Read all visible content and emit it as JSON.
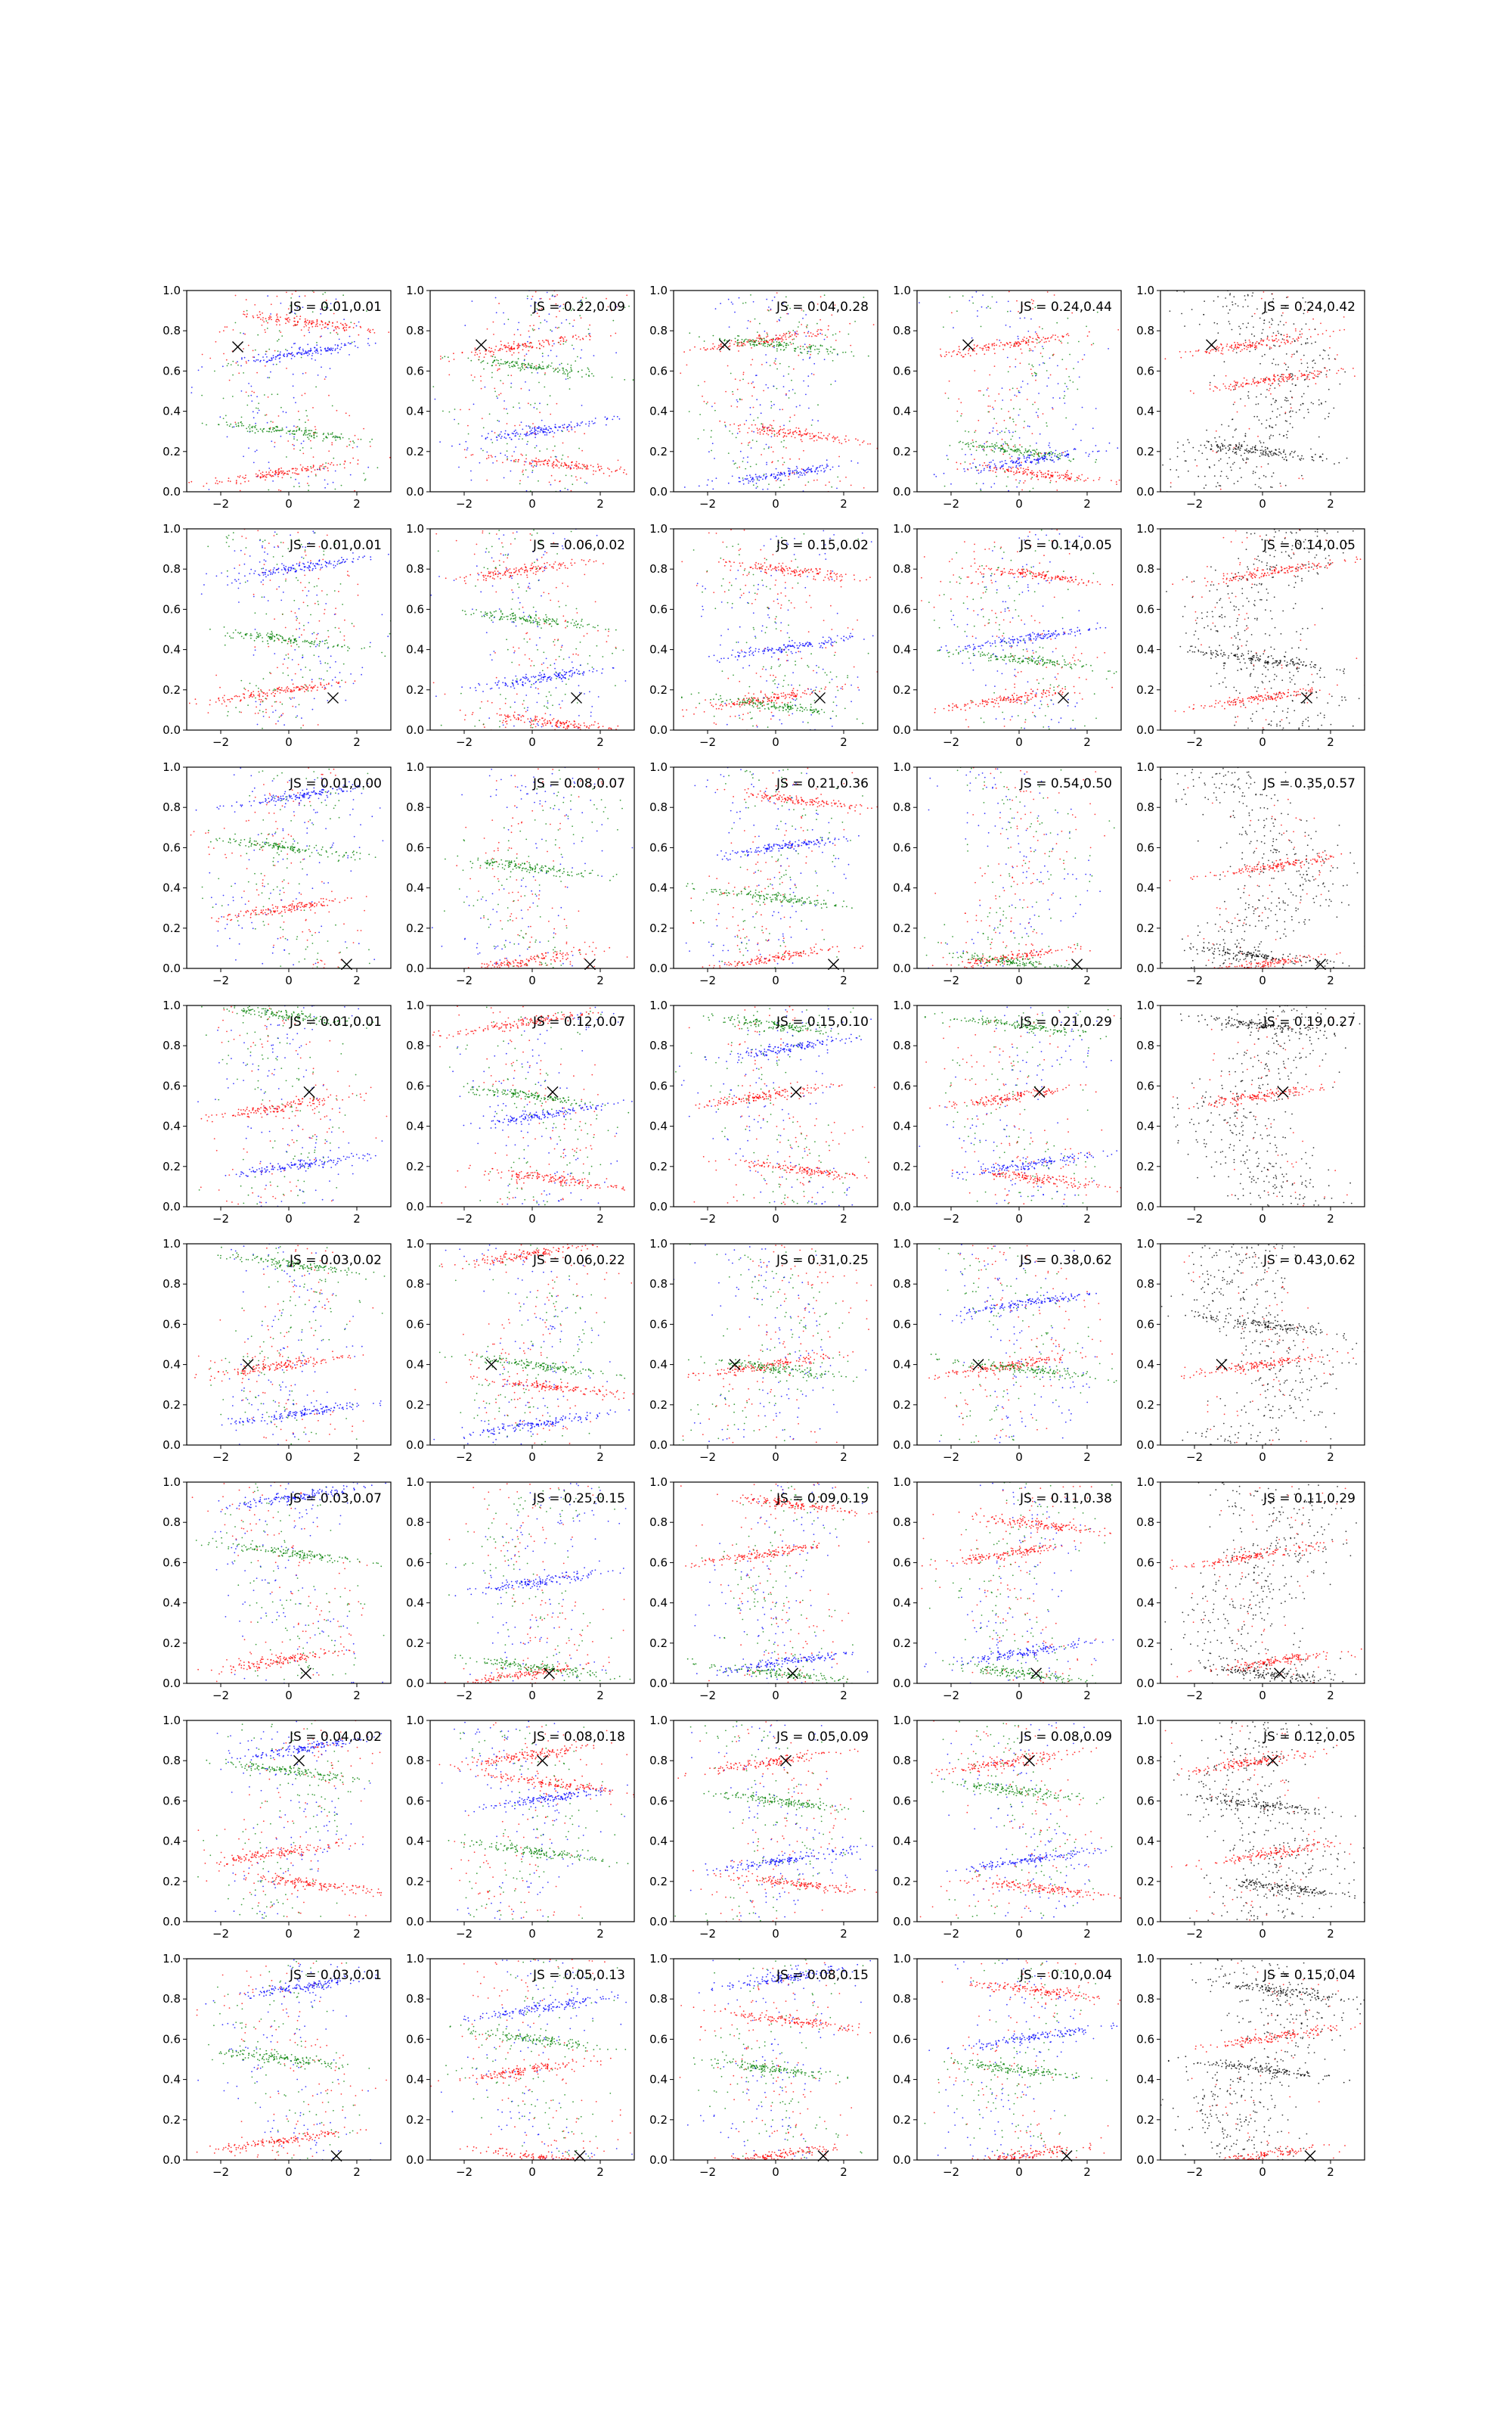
{
  "figure": {
    "rows": 8,
    "cols": 5,
    "xlim": [
      -3,
      3
    ],
    "ylim": [
      0,
      1
    ],
    "xticks": [
      -2,
      0,
      2
    ],
    "yticks": [
      0.0,
      0.2,
      0.4,
      0.6,
      0.8,
      1.0
    ],
    "xtick_labels": [
      "−2",
      "0",
      "2"
    ],
    "ytick_labels": [
      "0.0",
      "0.2",
      "0.4",
      "0.6",
      "0.8",
      "1.0"
    ],
    "colors": {
      "red": "#ff0000",
      "green": "#008000",
      "blue": "#0000ff",
      "black": "#000000",
      "axes": "#000000"
    }
  },
  "chart_data": [
    {
      "row": 1,
      "col": 1,
      "type": "scatter",
      "colors": [
        "red",
        "green",
        "blue"
      ],
      "js_label": "JS = 0.01,0.01",
      "marker": [
        -1.5,
        0.72
      ],
      "bands": [
        0.1,
        0.3,
        0.68,
        0.85
      ]
    },
    {
      "row": 1,
      "col": 2,
      "type": "scatter",
      "colors": [
        "red",
        "green",
        "blue"
      ],
      "js_label": "JS = 0.22,0.09",
      "marker": [
        -1.5,
        0.73
      ],
      "bands": [
        0.73,
        0.62,
        0.3,
        0.15
      ]
    },
    {
      "row": 1,
      "col": 3,
      "type": "scatter",
      "colors": [
        "red",
        "green",
        "blue"
      ],
      "js_label": "JS = 0.04,0.28",
      "marker": [
        -1.5,
        0.73
      ],
      "bands": [
        0.76,
        0.73,
        0.08,
        0.3
      ]
    },
    {
      "row": 1,
      "col": 4,
      "type": "scatter",
      "colors": [
        "red",
        "green",
        "blue"
      ],
      "js_label": "JS = 0.24,0.44",
      "marker": [
        -1.5,
        0.73
      ],
      "bands": [
        0.74,
        0.2,
        0.15,
        0.1
      ]
    },
    {
      "row": 1,
      "col": 5,
      "type": "scatter",
      "colors": [
        "red",
        "black"
      ],
      "js_label": "JS = 0.24,0.42",
      "marker": [
        -1.5,
        0.73
      ],
      "bands": [
        0.74,
        0.2,
        0.55
      ]
    },
    {
      "row": 2,
      "col": 1,
      "type": "scatter",
      "colors": [
        "red",
        "green",
        "blue"
      ],
      "js_label": "JS = 0.01,0.01",
      "marker": [
        1.3,
        0.16
      ],
      "bands": [
        0.2,
        0.45,
        0.8
      ]
    },
    {
      "row": 2,
      "col": 2,
      "type": "scatter",
      "colors": [
        "red",
        "green",
        "blue"
      ],
      "js_label": "JS = 0.06,0.02",
      "marker": [
        1.3,
        0.16
      ],
      "bands": [
        0.8,
        0.55,
        0.25,
        0.05
      ]
    },
    {
      "row": 2,
      "col": 3,
      "type": "scatter",
      "colors": [
        "red",
        "green",
        "blue"
      ],
      "js_label": "JS = 0.15,0.02",
      "marker": [
        1.3,
        0.16
      ],
      "bands": [
        0.16,
        0.12,
        0.4,
        0.8
      ]
    },
    {
      "row": 2,
      "col": 4,
      "type": "scatter",
      "colors": [
        "red",
        "green",
        "blue"
      ],
      "js_label": "JS = 0.14,0.05",
      "marker": [
        1.3,
        0.16
      ],
      "bands": [
        0.16,
        0.35,
        0.45,
        0.78
      ]
    },
    {
      "row": 2,
      "col": 5,
      "type": "scatter",
      "colors": [
        "red",
        "black"
      ],
      "js_label": "JS = 0.14,0.05",
      "marker": [
        1.3,
        0.16
      ],
      "bands": [
        0.16,
        0.35,
        0.78
      ]
    },
    {
      "row": 3,
      "col": 1,
      "type": "scatter",
      "colors": [
        "red",
        "green",
        "blue"
      ],
      "js_label": "JS = 0.01,0.00",
      "marker": [
        1.7,
        0.02
      ],
      "bands": [
        0.3,
        0.6,
        0.85
      ]
    },
    {
      "row": 3,
      "col": 2,
      "type": "scatter",
      "colors": [
        "red",
        "green",
        "blue"
      ],
      "js_label": "JS = 0.08,0.07",
      "marker": [
        1.7,
        0.02
      ],
      "bands": [
        0.04,
        0.5
      ]
    },
    {
      "row": 3,
      "col": 3,
      "type": "scatter",
      "colors": [
        "red",
        "green",
        "blue"
      ],
      "js_label": "JS = 0.21,0.36",
      "marker": [
        1.7,
        0.02
      ],
      "bands": [
        0.05,
        0.35,
        0.6,
        0.85
      ]
    },
    {
      "row": 3,
      "col": 4,
      "type": "scatter",
      "colors": [
        "red",
        "green",
        "blue"
      ],
      "js_label": "JS = 0.54,0.50",
      "marker": [
        1.7,
        0.02
      ],
      "bands": [
        0.06,
        0.03
      ]
    },
    {
      "row": 3,
      "col": 5,
      "type": "scatter",
      "colors": [
        "red",
        "black"
      ],
      "js_label": "JS = 0.35,0.57",
      "marker": [
        1.7,
        0.02
      ],
      "bands": [
        0.02,
        0.06,
        0.5
      ]
    },
    {
      "row": 4,
      "col": 1,
      "type": "scatter",
      "colors": [
        "red",
        "green",
        "blue"
      ],
      "js_label": "JS = 0.01,0.01",
      "marker": [
        0.6,
        0.57
      ],
      "bands": [
        0.5,
        0.95,
        0.2
      ]
    },
    {
      "row": 4,
      "col": 2,
      "type": "scatter",
      "colors": [
        "red",
        "green",
        "blue"
      ],
      "js_label": "JS = 0.12,0.07",
      "marker": [
        0.6,
        0.57
      ],
      "bands": [
        0.92,
        0.55,
        0.45,
        0.15
      ]
    },
    {
      "row": 4,
      "col": 3,
      "type": "scatter",
      "colors": [
        "red",
        "green",
        "blue"
      ],
      "js_label": "JS = 0.15,0.10",
      "marker": [
        0.6,
        0.57
      ],
      "bands": [
        0.56,
        0.9,
        0.78,
        0.2
      ]
    },
    {
      "row": 4,
      "col": 4,
      "type": "scatter",
      "colors": [
        "red",
        "green",
        "blue"
      ],
      "js_label": "JS = 0.21,0.29",
      "marker": [
        0.6,
        0.57
      ],
      "bands": [
        0.55,
        0.9,
        0.2,
        0.15
      ]
    },
    {
      "row": 4,
      "col": 5,
      "type": "scatter",
      "colors": [
        "red",
        "black"
      ],
      "js_label": "JS = 0.19,0.27",
      "marker": [
        0.6,
        0.57
      ],
      "bands": [
        0.55,
        0.9
      ]
    },
    {
      "row": 5,
      "col": 1,
      "type": "scatter",
      "colors": [
        "red",
        "green",
        "blue"
      ],
      "js_label": "JS = 0.03,0.02",
      "marker": [
        -1.2,
        0.4
      ],
      "bands": [
        0.4,
        0.9,
        0.15
      ]
    },
    {
      "row": 5,
      "col": 2,
      "type": "scatter",
      "colors": [
        "red",
        "green",
        "blue"
      ],
      "js_label": "JS = 0.06,0.22",
      "marker": [
        -1.2,
        0.4
      ],
      "bands": [
        0.95,
        0.4,
        0.1,
        0.3
      ]
    },
    {
      "row": 5,
      "col": 3,
      "type": "scatter",
      "colors": [
        "red",
        "green",
        "blue"
      ],
      "js_label": "JS = 0.31,0.25",
      "marker": [
        -1.2,
        0.4
      ],
      "bands": [
        0.4,
        0.38
      ]
    },
    {
      "row": 5,
      "col": 4,
      "type": "scatter",
      "colors": [
        "red",
        "green",
        "blue"
      ],
      "js_label": "JS = 0.38,0.62",
      "marker": [
        -1.2,
        0.4
      ],
      "bands": [
        0.4,
        0.38,
        0.7
      ]
    },
    {
      "row": 5,
      "col": 5,
      "type": "scatter",
      "colors": [
        "red",
        "black"
      ],
      "js_label": "JS = 0.43,0.62",
      "marker": [
        -1.2,
        0.4
      ],
      "bands": [
        0.4,
        0.6
      ]
    },
    {
      "row": 6,
      "col": 1,
      "type": "scatter",
      "colors": [
        "red",
        "green",
        "blue"
      ],
      "js_label": "JS = 0.03,0.07",
      "marker": [
        0.5,
        0.05
      ],
      "bands": [
        0.12,
        0.65,
        0.92
      ]
    },
    {
      "row": 6,
      "col": 2,
      "type": "scatter",
      "colors": [
        "red",
        "green",
        "blue"
      ],
      "js_label": "JS = 0.25,0.15",
      "marker": [
        0.5,
        0.05
      ],
      "bands": [
        0.05,
        0.08,
        0.5
      ]
    },
    {
      "row": 6,
      "col": 3,
      "type": "scatter",
      "colors": [
        "red",
        "green",
        "blue"
      ],
      "js_label": "JS = 0.09,0.19",
      "marker": [
        0.5,
        0.05
      ],
      "bands": [
        0.65,
        0.05,
        0.1,
        0.9
      ]
    },
    {
      "row": 6,
      "col": 4,
      "type": "scatter",
      "colors": [
        "red",
        "green",
        "blue"
      ],
      "js_label": "JS = 0.11,0.38",
      "marker": [
        0.5,
        0.05
      ],
      "bands": [
        0.65,
        0.05,
        0.15,
        0.8
      ]
    },
    {
      "row": 6,
      "col": 5,
      "type": "scatter",
      "colors": [
        "red",
        "black"
      ],
      "js_label": "JS = 0.11,0.29",
      "marker": [
        0.5,
        0.05
      ],
      "bands": [
        0.64,
        0.05,
        0.1
      ]
    },
    {
      "row": 7,
      "col": 1,
      "type": "scatter",
      "colors": [
        "red",
        "green",
        "blue"
      ],
      "js_label": "JS = 0.04,0.02",
      "marker": [
        0.3,
        0.8
      ],
      "bands": [
        0.35,
        0.75,
        0.85,
        0.2
      ]
    },
    {
      "row": 7,
      "col": 2,
      "type": "scatter",
      "colors": [
        "red",
        "green",
        "blue"
      ],
      "js_label": "JS = 0.08,0.18",
      "marker": [
        0.3,
        0.8
      ],
      "bands": [
        0.83,
        0.35,
        0.6,
        0.7
      ]
    },
    {
      "row": 7,
      "col": 3,
      "type": "scatter",
      "colors": [
        "red",
        "green",
        "blue"
      ],
      "js_label": "JS = 0.05,0.09",
      "marker": [
        0.3,
        0.8
      ],
      "bands": [
        0.8,
        0.6,
        0.3,
        0.2
      ]
    },
    {
      "row": 7,
      "col": 4,
      "type": "scatter",
      "colors": [
        "red",
        "green",
        "blue"
      ],
      "js_label": "JS = 0.08,0.09",
      "marker": [
        0.3,
        0.8
      ],
      "bands": [
        0.8,
        0.65,
        0.3,
        0.18
      ]
    },
    {
      "row": 7,
      "col": 5,
      "type": "scatter",
      "colors": [
        "red",
        "black"
      ],
      "js_label": "JS = 0.12,0.05",
      "marker": [
        0.3,
        0.8
      ],
      "bands": [
        0.8,
        0.58,
        0.33,
        0.18
      ]
    },
    {
      "row": 8,
      "col": 1,
      "type": "scatter",
      "colors": [
        "red",
        "green",
        "blue"
      ],
      "js_label": "JS = 0.03,0.01",
      "marker": [
        1.4,
        0.02
      ],
      "bands": [
        0.1,
        0.5,
        0.85
      ]
    },
    {
      "row": 8,
      "col": 2,
      "type": "scatter",
      "colors": [
        "red",
        "green",
        "blue"
      ],
      "js_label": "JS = 0.05,0.13",
      "marker": [
        1.4,
        0.02
      ],
      "bands": [
        0.45,
        0.6,
        0.75,
        0.02
      ]
    },
    {
      "row": 8,
      "col": 3,
      "type": "scatter",
      "colors": [
        "red",
        "green",
        "blue"
      ],
      "js_label": "JS = 0.08,0.15",
      "marker": [
        1.4,
        0.02
      ],
      "bands": [
        0.02,
        0.45,
        0.9,
        0.7
      ]
    },
    {
      "row": 8,
      "col": 4,
      "type": "scatter",
      "colors": [
        "red",
        "green",
        "blue"
      ],
      "js_label": "JS = 0.10,0.04",
      "marker": [
        1.4,
        0.02
      ],
      "bands": [
        0.02,
        0.45,
        0.6,
        0.85
      ]
    },
    {
      "row": 8,
      "col": 5,
      "type": "scatter",
      "colors": [
        "red",
        "black"
      ],
      "js_label": "JS = 0.15,0.04",
      "marker": [
        1.4,
        0.02
      ],
      "bands": [
        0.02,
        0.45,
        0.6,
        0.85
      ]
    }
  ]
}
